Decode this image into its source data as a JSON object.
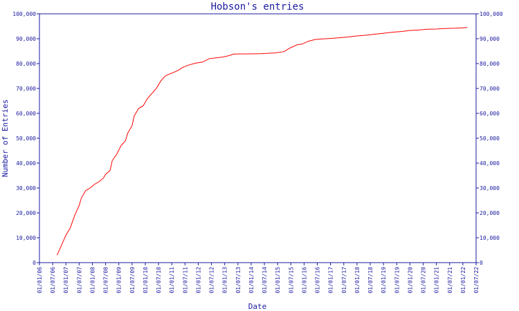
{
  "chart_data": {
    "type": "line",
    "title": "Hobson's entries",
    "xlabel": "Date",
    "ylabel": "Number of Entries",
    "ylim": [
      0,
      100000
    ],
    "y_ticks": [
      0,
      10000,
      20000,
      30000,
      40000,
      50000,
      60000,
      70000,
      80000,
      90000,
      100000
    ],
    "y_tick_labels": [
      "0",
      "10,000",
      "20,000",
      "30,000",
      "40,000",
      "50,000",
      "60,000",
      "70,000",
      "80,000",
      "90,000",
      "100,000"
    ],
    "x_ticks": [
      "01/01/06",
      "01/07/06",
      "01/01/07",
      "01/07/07",
      "01/01/08",
      "01/07/08",
      "01/01/09",
      "01/07/09",
      "01/01/10",
      "01/07/10",
      "01/01/11",
      "01/07/11",
      "01/01/12",
      "01/07/12",
      "01/01/13",
      "01/07/13",
      "01/01/14",
      "01/07/14",
      "01/01/15",
      "01/07/15",
      "01/01/16",
      "01/07/16",
      "01/01/17",
      "01/07/17",
      "01/01/18",
      "01/07/18",
      "01/01/19",
      "01/07/19",
      "01/01/20",
      "01/07/20",
      "01/01/21",
      "01/07/21",
      "01/01/22",
      "01/07/22"
    ],
    "y_axis_both_sides": true,
    "grid": false,
    "line_color": "#ff0000",
    "axis_color": "#1a1aa0",
    "series": [
      {
        "points": [
          [
            "01/09/06",
            3000
          ],
          [
            "01/11/06",
            7000
          ],
          [
            "01/01/07",
            11000
          ],
          [
            "01/03/07",
            14000
          ],
          [
            "01/05/07",
            19000
          ],
          [
            "01/07/07",
            23000
          ],
          [
            "01/08/07",
            26000
          ],
          [
            "01/10/07",
            29000
          ],
          [
            "01/12/07",
            30000
          ],
          [
            "01/02/08",
            31500
          ],
          [
            "01/04/08",
            32500
          ],
          [
            "01/06/08",
            34000
          ],
          [
            "01/07/08",
            35500
          ],
          [
            "01/09/08",
            37000
          ],
          [
            "01/10/08",
            41000
          ],
          [
            "01/12/08",
            43500
          ],
          [
            "01/02/09",
            47000
          ],
          [
            "01/04/09",
            49000
          ],
          [
            "01/05/09",
            52000
          ],
          [
            "01/07/09",
            55000
          ],
          [
            "01/08/09",
            59000
          ],
          [
            "01/10/09",
            62000
          ],
          [
            "01/12/09",
            63000
          ],
          [
            "01/02/10",
            66000
          ],
          [
            "01/04/10",
            68000
          ],
          [
            "01/06/10",
            70000
          ],
          [
            "01/08/10",
            73000
          ],
          [
            "01/10/10",
            75000
          ],
          [
            "01/12/10",
            75800
          ],
          [
            "01/02/11",
            76500
          ],
          [
            "01/04/11",
            77300
          ],
          [
            "01/06/11",
            78500
          ],
          [
            "01/09/11",
            79500
          ],
          [
            "01/12/11",
            80200
          ],
          [
            "01/03/12",
            80600
          ],
          [
            "01/06/12",
            82000
          ],
          [
            "01/09/12",
            82300
          ],
          [
            "01/12/12",
            82600
          ],
          [
            "01/03/13",
            83200
          ],
          [
            "01/05/13",
            83800
          ],
          [
            "01/09/13",
            83900
          ],
          [
            "01/01/14",
            83900
          ],
          [
            "01/06/14",
            84000
          ],
          [
            "01/12/14",
            84300
          ],
          [
            "01/04/15",
            84800
          ],
          [
            "01/06/15",
            86000
          ],
          [
            "01/08/15",
            86800
          ],
          [
            "01/10/15",
            87600
          ],
          [
            "01/12/15",
            87800
          ],
          [
            "01/03/16",
            89000
          ],
          [
            "01/06/16",
            89700
          ],
          [
            "01/09/16",
            89900
          ],
          [
            "01/01/17",
            90100
          ],
          [
            "01/05/17",
            90400
          ],
          [
            "01/09/17",
            90700
          ],
          [
            "01/01/18",
            91100
          ],
          [
            "01/05/18",
            91400
          ],
          [
            "01/09/18",
            91800
          ],
          [
            "01/01/19",
            92200
          ],
          [
            "01/05/19",
            92600
          ],
          [
            "01/09/19",
            92900
          ],
          [
            "01/01/20",
            93300
          ],
          [
            "01/05/20",
            93500
          ],
          [
            "01/09/20",
            93800
          ],
          [
            "01/01/21",
            93900
          ],
          [
            "01/05/21",
            94100
          ],
          [
            "01/09/21",
            94200
          ],
          [
            "01/01/22",
            94400
          ],
          [
            "01/03/22",
            94500
          ]
        ]
      }
    ]
  }
}
